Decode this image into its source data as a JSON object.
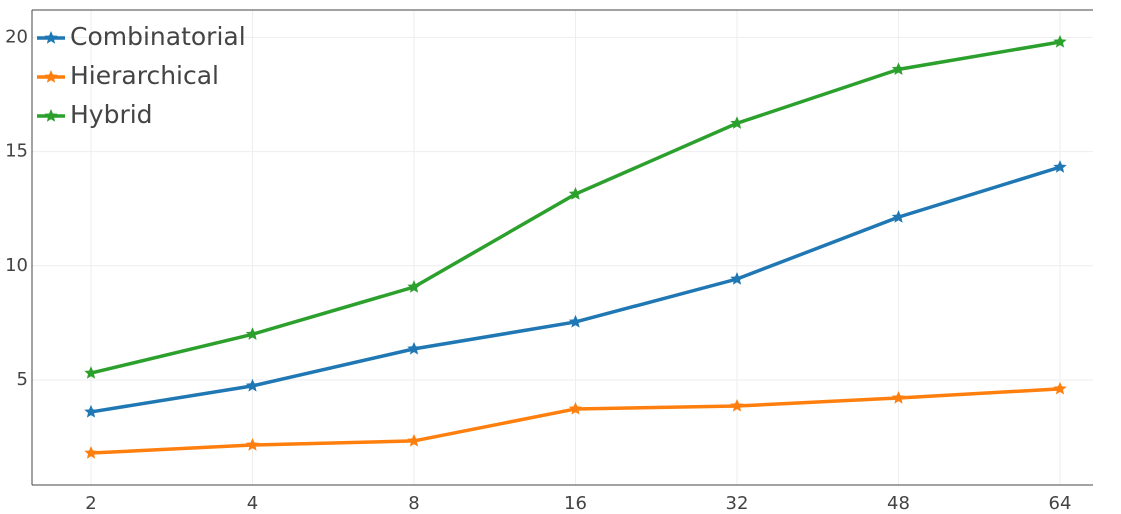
{
  "chart_data": {
    "type": "line",
    "categories": [
      "2",
      "4",
      "8",
      "16",
      "32",
      "48",
      "64"
    ],
    "series": [
      {
        "name": "Combinatorial",
        "color": "#1f77b4",
        "values": [
          3.6,
          4.74,
          6.36,
          7.54,
          9.42,
          12.13,
          14.32
        ]
      },
      {
        "name": "Hierarchical",
        "color": "#ff7f0e",
        "values": [
          1.8,
          2.15,
          2.33,
          3.73,
          3.86,
          4.21,
          4.61
        ]
      },
      {
        "name": "Hybrid",
        "color": "#2ca02c",
        "values": [
          5.3,
          7.0,
          9.07,
          13.14,
          16.24,
          18.6,
          19.8
        ]
      }
    ],
    "ylim": [
      0.4,
      21.2
    ],
    "yticks": [
      5,
      10,
      15,
      20
    ],
    "grid": true,
    "legend": "top-left"
  }
}
